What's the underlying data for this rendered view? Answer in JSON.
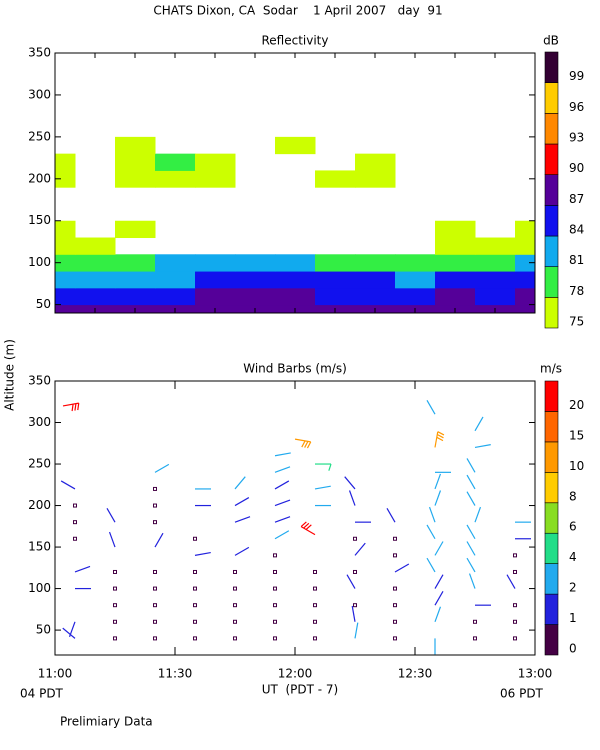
{
  "title": "CHATS Dixon, CA  Sodar    1 April 2007   day  91",
  "ylabel": "Altitude (m)",
  "xlabel": "UT  (PDT - 7)",
  "left_note": "04 PDT",
  "right_note": "06 PDT",
  "footnote": "Prelimiary Data",
  "chart_data": [
    {
      "type": "heatmap",
      "title": "Reflectivity",
      "x": [
        0,
        10,
        20,
        30,
        40,
        50,
        60,
        70,
        80,
        90,
        100,
        110,
        120
      ],
      "y": [
        40,
        60,
        80,
        100,
        120,
        140,
        160,
        180,
        200,
        220,
        240
      ],
      "values": [
        [
          88,
          88,
          88,
          88,
          88,
          88,
          88,
          88,
          88,
          88,
          88,
          88,
          88
        ],
        [
          86,
          86,
          85,
          86,
          88,
          88,
          88,
          85,
          86,
          86,
          88,
          85,
          88
        ],
        [
          83,
          82,
          83,
          83,
          85,
          85,
          85,
          86,
          85,
          83,
          84,
          84,
          84
        ],
        [
          80,
          79,
          79,
          82,
          82,
          82,
          82,
          80,
          80,
          80,
          79,
          80,
          82
        ],
        [
          77,
          77,
          null,
          null,
          null,
          null,
          null,
          null,
          null,
          null,
          77,
          76,
          77
        ],
        [
          76,
          null,
          76,
          null,
          null,
          null,
          null,
          null,
          null,
          null,
          76,
          null,
          76
        ],
        [
          null,
          null,
          null,
          null,
          null,
          null,
          null,
          null,
          null,
          null,
          null,
          null,
          null
        ],
        [
          null,
          null,
          null,
          null,
          null,
          null,
          null,
          null,
          null,
          null,
          null,
          null,
          null
        ],
        [
          76,
          null,
          77,
          77,
          76,
          null,
          null,
          76,
          76,
          null,
          null,
          null,
          null
        ],
        [
          76,
          null,
          76,
          79,
          76,
          null,
          null,
          null,
          76,
          null,
          null,
          null,
          null
        ],
        [
          null,
          null,
          76,
          null,
          null,
          null,
          76,
          null,
          null,
          null,
          null,
          null,
          null
        ]
      ],
      "xlim": [
        0,
        120
      ],
      "xticks": [
        0,
        10,
        20,
        30,
        40,
        50,
        60,
        70,
        80,
        90,
        100,
        110,
        120
      ],
      "ylim": [
        40,
        350
      ],
      "yticks": [
        50,
        100,
        150,
        200,
        250,
        300,
        350
      ],
      "colorbar": {
        "label": "dB",
        "levels": [
          75,
          78,
          81,
          84,
          87,
          90,
          93,
          96,
          99
        ],
        "colors": [
          "#ccff00",
          "#33ee44",
          "#11aaee",
          "#1111ee",
          "#550099",
          "#ff0000",
          "#ff8800",
          "#ffcc00",
          "#330033"
        ]
      }
    },
    {
      "type": "barbs",
      "title": "Wind Barbs (m/s)",
      "x": [
        5,
        5,
        5,
        5,
        5,
        5,
        5,
        5,
        2,
        15,
        15,
        15,
        15,
        15,
        15,
        15,
        25,
        25,
        25,
        25,
        25,
        25,
        25,
        25,
        25,
        25,
        35,
        35,
        35,
        35,
        35,
        35,
        35,
        35,
        35,
        45,
        45,
        45,
        45,
        45,
        45,
        45,
        45,
        45,
        55,
        55,
        55,
        55,
        55,
        55,
        55,
        55,
        55,
        55,
        55,
        55,
        60,
        65,
        65,
        65,
        65,
        65,
        65,
        65,
        65,
        65,
        75,
        75,
        75,
        75,
        75,
        75,
        75,
        75,
        75,
        75,
        85,
        85,
        85,
        85,
        85,
        85,
        85,
        85,
        95,
        95,
        95,
        95,
        95,
        95,
        95,
        95,
        95,
        95,
        95,
        95,
        95,
        105,
        105,
        105,
        105,
        105,
        105,
        105,
        105,
        105,
        105,
        105,
        105,
        105,
        115,
        115,
        115,
        115,
        115,
        115,
        115,
        115
      ],
      "y": [
        40,
        60,
        100,
        120,
        160,
        180,
        200,
        220,
        320,
        40,
        60,
        80,
        100,
        120,
        150,
        180,
        40,
        60,
        80,
        100,
        120,
        150,
        180,
        200,
        220,
        240,
        40,
        60,
        80,
        100,
        120,
        140,
        160,
        200,
        220,
        40,
        60,
        80,
        100,
        120,
        140,
        180,
        200,
        220,
        40,
        60,
        80,
        100,
        120,
        140,
        160,
        180,
        200,
        220,
        240,
        260,
        280,
        40,
        60,
        80,
        100,
        120,
        165,
        200,
        220,
        250,
        40,
        60,
        80,
        100,
        120,
        140,
        160,
        180,
        200,
        220,
        40,
        60,
        80,
        100,
        120,
        140,
        160,
        180,
        40,
        60,
        80,
        100,
        120,
        140,
        160,
        180,
        200,
        220,
        240,
        270,
        310,
        40,
        60,
        80,
        100,
        120,
        140,
        160,
        180,
        200,
        220,
        240,
        270,
        290,
        40,
        60,
        80,
        100,
        120,
        140,
        160,
        180
      ],
      "speed": [
        1,
        1,
        1,
        1,
        0,
        0,
        0,
        1,
        20,
        0,
        0,
        0,
        0,
        0,
        1,
        1,
        0,
        0,
        0,
        0,
        0,
        1,
        0,
        0,
        0,
        2,
        0,
        0,
        0,
        0,
        0,
        1,
        0,
        1,
        2,
        0,
        0,
        0,
        0,
        0,
        1,
        1,
        1,
        2,
        0,
        0,
        0,
        0,
        0,
        0,
        2,
        1,
        1,
        1,
        2,
        2,
        10,
        0,
        0,
        0,
        0,
        0,
        20,
        2,
        2,
        5,
        2,
        1,
        0,
        1,
        0,
        1,
        0,
        1,
        1,
        1,
        0,
        0,
        0,
        0,
        1,
        0,
        0,
        1,
        2,
        2,
        1,
        1,
        2,
        2,
        2,
        2,
        2,
        2,
        2,
        10,
        3,
        0,
        0,
        1,
        2,
        2,
        2,
        2,
        2,
        2,
        2,
        2,
        2,
        2,
        0,
        0,
        0,
        1,
        0,
        0,
        1,
        2
      ],
      "direction": [
        310,
        200,
        90,
        70,
        0,
        0,
        0,
        300,
        80,
        0,
        0,
        0,
        0,
        0,
        340,
        330,
        0,
        0,
        0,
        0,
        0,
        30,
        0,
        0,
        0,
        60,
        0,
        0,
        0,
        0,
        0,
        80,
        0,
        90,
        90,
        0,
        0,
        0,
        0,
        0,
        60,
        70,
        60,
        40,
        0,
        0,
        0,
        0,
        0,
        0,
        60,
        70,
        70,
        60,
        70,
        80,
        100,
        0,
        0,
        0,
        0,
        0,
        300,
        90,
        80,
        90,
        10,
        350,
        0,
        330,
        0,
        40,
        0,
        90,
        340,
        320,
        0,
        0,
        0,
        0,
        60,
        0,
        0,
        330,
        180,
        20,
        30,
        30,
        330,
        30,
        330,
        340,
        20,
        20,
        90,
        10,
        330,
        0,
        0,
        90,
        340,
        330,
        330,
        330,
        20,
        330,
        330,
        330,
        80,
        30,
        0,
        0,
        0,
        330,
        0,
        0,
        90,
        90
      ],
      "xlim": [
        0,
        120
      ],
      "xticks": [
        {
          "value": 0,
          "label": "11:00"
        },
        {
          "value": 30,
          "label": "11:30"
        },
        {
          "value": 60,
          "label": "12:00"
        },
        {
          "value": 90,
          "label": "12:30"
        },
        {
          "value": 120,
          "label": "13:00"
        }
      ],
      "ylim": [
        20,
        350
      ],
      "yticks": [
        50,
        100,
        150,
        200,
        250,
        300,
        350
      ],
      "colorbar": {
        "label": "m/s",
        "levels": [
          0,
          1,
          2,
          4,
          6,
          8,
          10,
          15,
          20
        ],
        "colors": [
          "#440044",
          "#2222dd",
          "#22aaee",
          "#22dd88",
          "#88dd22",
          "#ffcc00",
          "#ff9900",
          "#ff6600",
          "#ff0000"
        ]
      }
    }
  ]
}
